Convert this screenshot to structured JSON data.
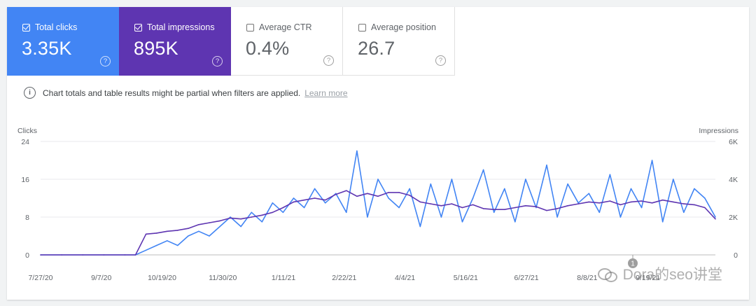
{
  "metrics": [
    {
      "label": "Total clicks",
      "value": "3.35K",
      "checked": true
    },
    {
      "label": "Total impressions",
      "value": "895K",
      "checked": true
    },
    {
      "label": "Average CTR",
      "value": "0.4%",
      "checked": false
    },
    {
      "label": "Average position",
      "value": "26.7",
      "checked": false
    }
  ],
  "help_glyph": "?",
  "notice": {
    "icon": "info-icon",
    "icon_glyph": "i",
    "text": "Chart totals and table results might be partial when filters are applied.",
    "link": "Learn more"
  },
  "colors": {
    "clicks": "#4285f4",
    "impressions": "#5e35b1",
    "grid": "#e8eaed"
  },
  "chart_data": {
    "type": "line",
    "ylabel_left": "Clicks",
    "ylabel_right": "Impressions",
    "yticks_left": [
      "0",
      "8",
      "16",
      "24"
    ],
    "yticks_right": [
      "0",
      "2K",
      "4K",
      "6K"
    ],
    "ylim_left": [
      0,
      24
    ],
    "ylim_right": [
      0,
      6000
    ],
    "xlim": [
      "2020-07-27",
      "2021-10-18"
    ],
    "xticks": [
      "7/27/20",
      "9/7/20",
      "10/19/20",
      "11/30/20",
      "1/11/21",
      "2/22/21",
      "4/4/21",
      "5/16/21",
      "6/27/21",
      "8/8/21",
      "9/19/21"
    ],
    "annotation": "1",
    "grid": true,
    "legend": "none",
    "series": [
      {
        "name": "Clicks",
        "axis": "left",
        "x": [
          "2020-07-27",
          "2020-08-10",
          "2020-08-24",
          "2020-09-07",
          "2020-09-21",
          "2020-09-28",
          "2020-10-05",
          "2020-10-12",
          "2020-10-19",
          "2020-10-26",
          "2020-11-02",
          "2020-11-09",
          "2020-11-16",
          "2020-11-23",
          "2020-11-30",
          "2020-12-07",
          "2020-12-14",
          "2020-12-21",
          "2020-12-28",
          "2021-01-04",
          "2021-01-11",
          "2021-01-18",
          "2021-01-25",
          "2021-02-01",
          "2021-02-08",
          "2021-02-15",
          "2021-02-22",
          "2021-03-01",
          "2021-03-08",
          "2021-03-15",
          "2021-03-22",
          "2021-03-29",
          "2021-04-05",
          "2021-04-12",
          "2021-04-19",
          "2021-04-26",
          "2021-05-03",
          "2021-05-10",
          "2021-05-17",
          "2021-05-24",
          "2021-05-31",
          "2021-06-07",
          "2021-06-14",
          "2021-06-21",
          "2021-06-28",
          "2021-07-05",
          "2021-07-12",
          "2021-07-19",
          "2021-07-26",
          "2021-08-02",
          "2021-08-09",
          "2021-08-16",
          "2021-08-23",
          "2021-08-30",
          "2021-09-06",
          "2021-09-13",
          "2021-09-20",
          "2021-09-27",
          "2021-10-04",
          "2021-10-11",
          "2021-10-18"
        ],
        "y": [
          0,
          0,
          0,
          0,
          0,
          0,
          1,
          2,
          3,
          2,
          4,
          5,
          4,
          6,
          8,
          6,
          9,
          7,
          11,
          9,
          12,
          10,
          14,
          11,
          13,
          9,
          22,
          8,
          16,
          12,
          10,
          14,
          6,
          15,
          8,
          16,
          7,
          12,
          18,
          9,
          14,
          7,
          16,
          10,
          19,
          8,
          15,
          11,
          13,
          9,
          17,
          8,
          14,
          10,
          20,
          7,
          16,
          9,
          14,
          12,
          8
        ],
        "values": [
          0,
          0,
          0,
          0,
          0,
          0,
          1,
          2,
          3,
          2,
          4,
          5,
          4,
          6,
          8,
          6,
          9,
          7,
          11,
          9,
          12,
          10,
          14,
          11,
          13,
          9,
          22,
          8,
          16,
          12,
          10,
          14,
          6,
          15,
          8,
          16,
          7,
          12,
          18,
          9,
          14,
          7,
          16,
          10,
          19,
          8,
          15,
          11,
          13,
          9,
          17,
          8,
          14,
          10,
          20,
          7,
          16,
          9,
          14,
          12,
          8
        ]
      },
      {
        "name": "Impressions",
        "axis": "right",
        "x": [
          "2020-07-27",
          "2020-08-10",
          "2020-08-24",
          "2020-09-07",
          "2020-09-21",
          "2020-09-28",
          "2020-10-05",
          "2020-10-12",
          "2020-10-19",
          "2020-10-26",
          "2020-11-02",
          "2020-11-09",
          "2020-11-16",
          "2020-11-23",
          "2020-11-30",
          "2020-12-07",
          "2020-12-14",
          "2020-12-21",
          "2020-12-28",
          "2021-01-04",
          "2021-01-11",
          "2021-01-18",
          "2021-01-25",
          "2021-02-01",
          "2021-02-08",
          "2021-02-15",
          "2021-02-22",
          "2021-03-01",
          "2021-03-08",
          "2021-03-15",
          "2021-03-22",
          "2021-03-29",
          "2021-04-05",
          "2021-04-12",
          "2021-04-19",
          "2021-04-26",
          "2021-05-03",
          "2021-05-10",
          "2021-05-17",
          "2021-05-24",
          "2021-05-31",
          "2021-06-07",
          "2021-06-14",
          "2021-06-21",
          "2021-06-28",
          "2021-07-05",
          "2021-07-12",
          "2021-07-19",
          "2021-07-26",
          "2021-08-02",
          "2021-08-09",
          "2021-08-16",
          "2021-08-23",
          "2021-08-30",
          "2021-09-06",
          "2021-09-13",
          "2021-09-20",
          "2021-09-27",
          "2021-10-04",
          "2021-10-11",
          "2021-10-18"
        ],
        "y": [
          0,
          0,
          0,
          0,
          0,
          0,
          1100,
          1150,
          1250,
          1300,
          1400,
          1600,
          1700,
          1800,
          1950,
          1900,
          2000,
          2100,
          2250,
          2500,
          2800,
          2900,
          3000,
          2900,
          3200,
          3400,
          3100,
          3250,
          3100,
          3300,
          3300,
          3150,
          2800,
          2700,
          2600,
          2700,
          2500,
          2650,
          2450,
          2400,
          2400,
          2500,
          2600,
          2550,
          2350,
          2450,
          2600,
          2700,
          2800,
          2750,
          2850,
          2650,
          2800,
          2850,
          2750,
          2900,
          2800,
          2700,
          2650,
          2500,
          1900
        ],
        "values": [
          0,
          0,
          0,
          0,
          0,
          0,
          1100,
          1150,
          1250,
          1300,
          1400,
          1600,
          1700,
          1800,
          1950,
          1900,
          2000,
          2100,
          2250,
          2500,
          2800,
          2900,
          3000,
          2900,
          3200,
          3400,
          3100,
          3250,
          3100,
          3300,
          3300,
          3150,
          2800,
          2700,
          2600,
          2700,
          2500,
          2650,
          2450,
          2400,
          2400,
          2500,
          2600,
          2550,
          2350,
          2450,
          2600,
          2700,
          2800,
          2750,
          2850,
          2650,
          2800,
          2850,
          2750,
          2900,
          2800,
          2700,
          2650,
          2500,
          1900
        ]
      }
    ]
  },
  "watermark": {
    "text": "Dora的seo讲堂",
    "icon": "wechat-icon"
  }
}
